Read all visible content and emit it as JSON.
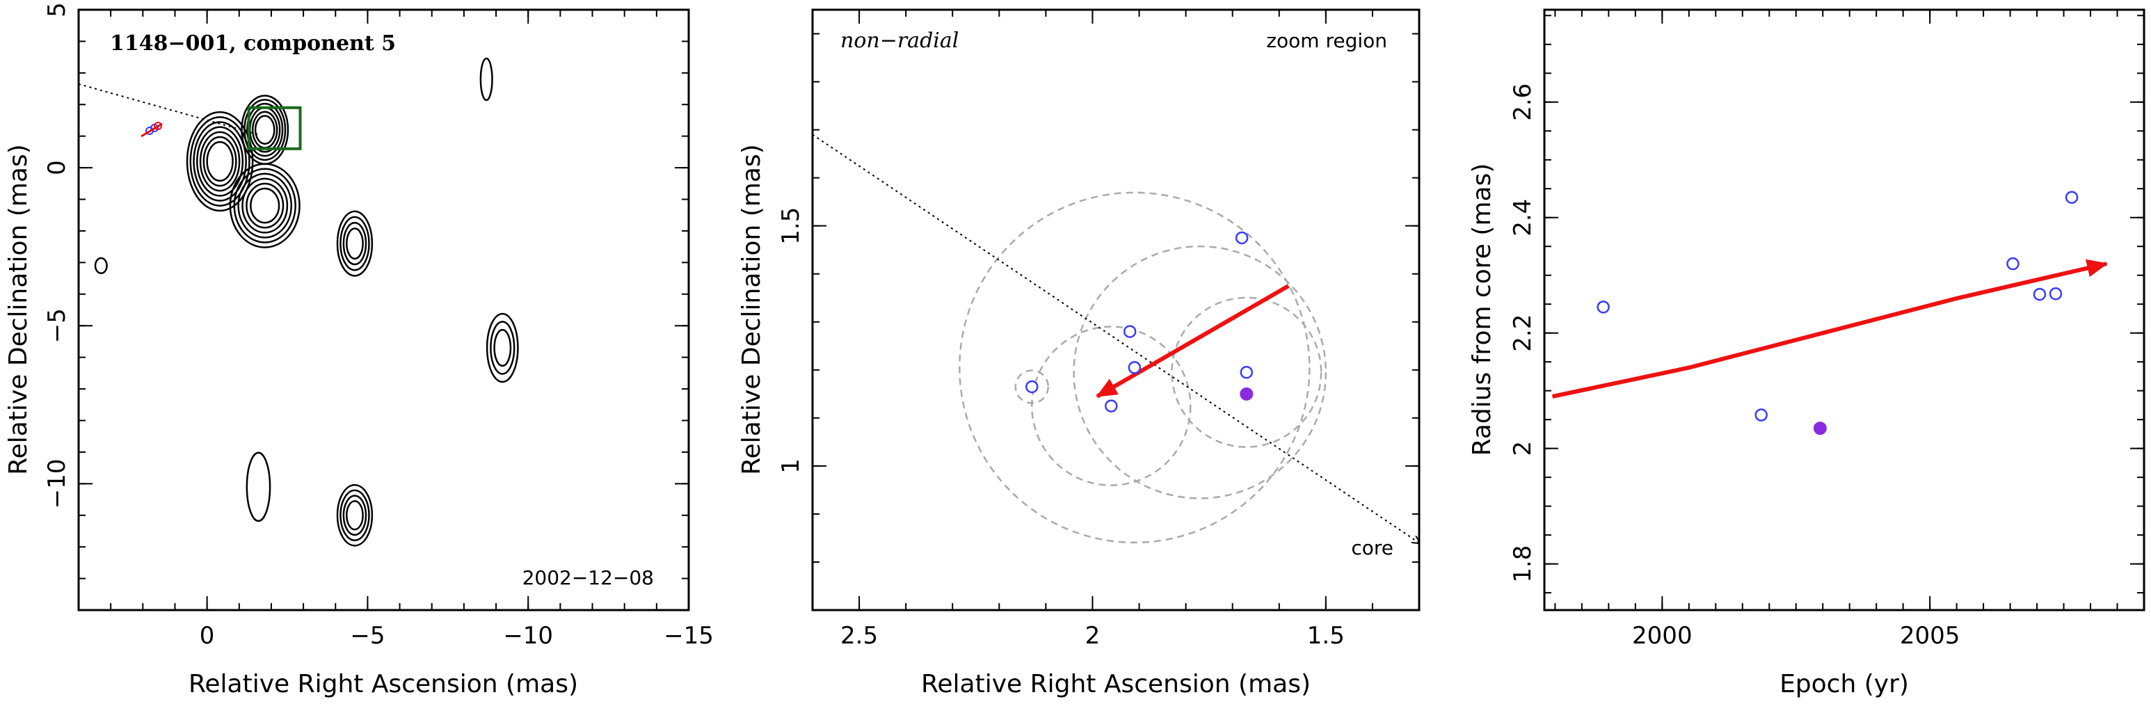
{
  "colors": {
    "open_marker": "#3a3aff",
    "filled_marker": "#8a2be2",
    "arrow": "#ee1111",
    "box": "#1a6b1a",
    "dashed_circle": "#aaaaaa"
  },
  "chart_data": [
    {
      "type": "contour",
      "title": "1148−001, component 5",
      "date_label": "2002−12−08",
      "xlabel": "Relative Right Ascension (mas)",
      "ylabel": "Relative Declination (mas)",
      "xlim": [
        4,
        -15
      ],
      "ylim": [
        -14,
        5
      ],
      "xticks": [
        0,
        -5,
        -10,
        -15
      ],
      "xtick_labels": [
        "0",
        "−5",
        "−10",
        "−15"
      ],
      "yticks": [
        5,
        0,
        -5,
        -10
      ],
      "ytick_labels": [
        "5",
        "0",
        "−5",
        "−10"
      ],
      "sources": [
        {
          "x": -1.8,
          "y": 1.2,
          "sx": 0.6,
          "sy": 0.9,
          "levels": 6
        },
        {
          "x": -0.4,
          "y": 0.2,
          "sx": 0.85,
          "sy": 1.3,
          "levels": 7
        },
        {
          "x": -1.8,
          "y": -1.2,
          "sx": 0.9,
          "sy": 1.1,
          "levels": 6
        },
        {
          "x": -4.6,
          "y": -2.4,
          "sx": 0.45,
          "sy": 0.85,
          "levels": 4
        },
        {
          "x": -9.2,
          "y": -5.7,
          "sx": 0.4,
          "sy": 0.9,
          "levels": 3
        },
        {
          "x": -4.6,
          "y": -11.0,
          "sx": 0.45,
          "sy": 0.8,
          "levels": 4
        },
        {
          "x": -8.7,
          "y": 2.8,
          "sx": 0.15,
          "sy": 0.55,
          "levels": 1
        },
        {
          "x": -1.6,
          "y": -10.1,
          "sx": 0.3,
          "sy": 0.9,
          "levels": 1
        },
        {
          "x": 3.3,
          "y": -3.1,
          "sx": 0.15,
          "sy": 0.2,
          "levels": 1
        }
      ],
      "zoom_box": {
        "x": [
          -2.9,
          -1.3
        ],
        "y": [
          0.6,
          1.9
        ]
      },
      "trajectory_line": {
        "x1": 4,
        "y1": 2.65,
        "x2": -1.6,
        "y2": 1.05
      }
    },
    {
      "type": "scatter",
      "title": "non−radial",
      "zoom_label": "zoom region",
      "core_label": "core",
      "xlabel": "Relative Right Ascension (mas)",
      "ylabel": "Relative Declination (mas)",
      "xlim": [
        2.6,
        1.3
      ],
      "ylim": [
        0.7,
        1.95
      ],
      "xticks": [
        2.5,
        2,
        1.5
      ],
      "xtick_labels": [
        "2.5",
        "2",
        "1.5"
      ],
      "yticks": [
        1,
        1.5
      ],
      "ytick_labels": [
        "1",
        "1.5"
      ],
      "open_points": [
        {
          "x": 2.13,
          "y": 1.165
        },
        {
          "x": 1.96,
          "y": 1.125
        },
        {
          "x": 1.92,
          "y": 1.28
        },
        {
          "x": 1.91,
          "y": 1.205
        },
        {
          "x": 1.68,
          "y": 1.475
        },
        {
          "x": 1.67,
          "y": 1.195
        }
      ],
      "filled_points": [
        {
          "x": 1.67,
          "y": 1.15
        }
      ],
      "circles": [
        {
          "x": 2.13,
          "y": 1.165,
          "r": 0.035
        },
        {
          "x": 1.96,
          "y": 1.125,
          "r": 0.17
        },
        {
          "x": 1.91,
          "y": 1.205,
          "r": 0.375
        },
        {
          "x": 1.67,
          "y": 1.195,
          "r": 0.16
        },
        {
          "x": 1.77,
          "y": 1.195,
          "r": 0.27
        }
      ],
      "trajectory_line": {
        "x1": 2.6,
        "y1": 1.69,
        "x2": 1.3,
        "y2": 0.84
      },
      "motion_arrow": {
        "x1": 1.58,
        "y1": 1.375,
        "x2": 1.99,
        "y2": 1.145
      }
    },
    {
      "type": "scatter",
      "xlabel": "Epoch (yr)",
      "ylabel": "Radius from core (mas)",
      "xlim": [
        1997.8,
        2009.0
      ],
      "ylim": [
        1.72,
        2.76
      ],
      "xticks": [
        2000,
        2005
      ],
      "xtick_labels": [
        "2000",
        "2005"
      ],
      "yticks": [
        1.8,
        2.0,
        2.2,
        2.4,
        2.6
      ],
      "ytick_labels": [
        "1.8",
        "2",
        "2.2",
        "2.4",
        "2.6"
      ],
      "open_points": [
        {
          "x": 1998.9,
          "y": 2.245
        },
        {
          "x": 2001.85,
          "y": 2.058
        },
        {
          "x": 2006.55,
          "y": 2.32
        },
        {
          "x": 2007.05,
          "y": 2.267
        },
        {
          "x": 2007.35,
          "y": 2.268
        },
        {
          "x": 2007.65,
          "y": 2.435
        }
      ],
      "filled_points": [
        {
          "x": 2002.95,
          "y": 2.035
        }
      ],
      "motion_arrow": {
        "x": [
          1997.95,
          2000.5,
          2003.0,
          2005.5,
          2008.3
        ],
        "y": [
          2.09,
          2.14,
          2.2,
          2.26,
          2.32
        ]
      }
    }
  ]
}
